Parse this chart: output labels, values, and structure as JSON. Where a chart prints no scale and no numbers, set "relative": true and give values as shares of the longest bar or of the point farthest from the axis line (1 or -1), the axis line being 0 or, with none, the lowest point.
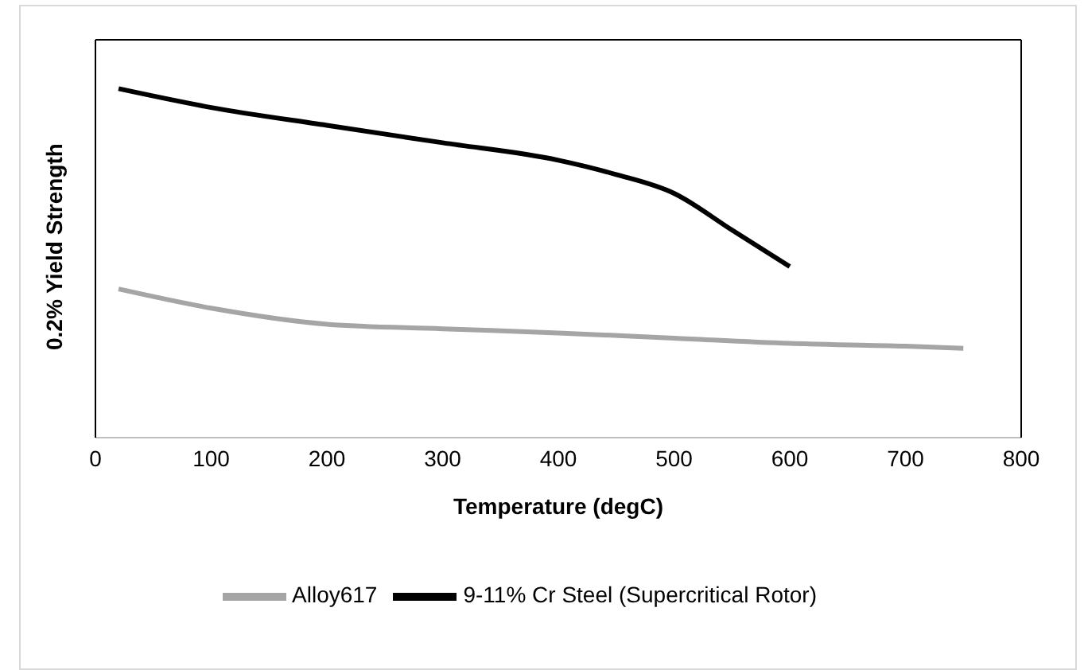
{
  "chart_data": {
    "type": "line",
    "xlabel": "Temperature (degC)",
    "ylabel": "0.2% Yield Strength",
    "relative": true,
    "xlim": [
      0,
      800
    ],
    "xticks": [
      0,
      100,
      200,
      300,
      400,
      500,
      600,
      700,
      800
    ],
    "legend": "bottom",
    "marker": "none",
    "series": [
      {
        "name": "Alloy617",
        "color": "#a5a5a5",
        "x": [
          20,
          100,
          200,
          300,
          400,
          500,
          600,
          700,
          750
        ],
        "values": [
          0.426,
          0.371,
          0.325,
          0.312,
          0.3,
          0.285,
          0.27,
          0.262,
          0.256
        ]
      },
      {
        "name": "9-11% Cr Steel (Supercritical Rotor)",
        "color": "#000000",
        "x": [
          20,
          100,
          200,
          300,
          400,
          450,
          500,
          550,
          600
        ],
        "values": [
          1.0,
          0.946,
          0.895,
          0.845,
          0.795,
          0.754,
          0.7,
          0.595,
          0.49
        ]
      }
    ]
  }
}
